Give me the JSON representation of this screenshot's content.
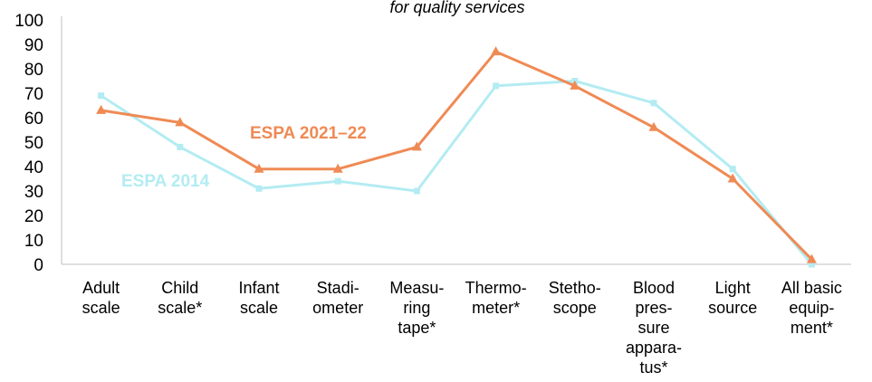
{
  "chart_data": {
    "type": "line",
    "title": "for quality services",
    "categories": [
      [
        "Adult",
        "scale"
      ],
      [
        "Child",
        "scale*"
      ],
      [
        "Infant",
        "scale"
      ],
      [
        "Stadi-",
        "ometer"
      ],
      [
        "Measu-",
        "ring",
        "tape*"
      ],
      [
        "Thermo-",
        "meter*"
      ],
      [
        "Stetho-",
        "scope"
      ],
      [
        "Blood",
        "pres-",
        "sure",
        "appara-",
        "tus*"
      ],
      [
        "Light",
        "source"
      ],
      [
        "All basic",
        "equip-",
        "ment*"
      ]
    ],
    "series": [
      {
        "name": "ESPA 2014",
        "color": "#b3ecf2",
        "marker": "square",
        "values": [
          69,
          48,
          31,
          34,
          30,
          73,
          75,
          66,
          39,
          0
        ]
      },
      {
        "name": "ESPA 2021–22",
        "color": "#ef8a54",
        "marker": "triangle",
        "values": [
          63,
          58,
          39,
          39,
          48,
          87,
          73,
          56,
          35,
          2
        ]
      }
    ],
    "ylim": [
      0,
      100
    ],
    "yticks": [
      0,
      10,
      20,
      30,
      40,
      50,
      60,
      70,
      80,
      90,
      100
    ],
    "grid": false,
    "legend": "inline labels"
  }
}
